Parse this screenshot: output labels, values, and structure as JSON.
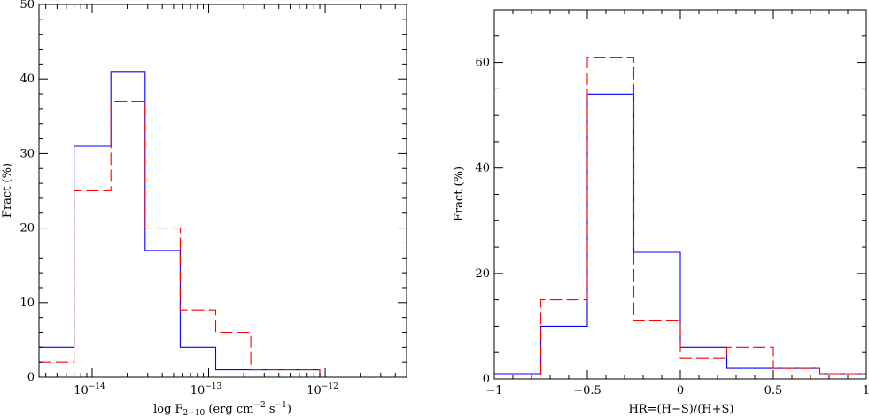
{
  "colors": {
    "blue_series": "#0000ff",
    "red_series": "#ff0000",
    "axes": "#000000"
  },
  "chart_data": [
    {
      "type": "step",
      "xlabel": "log F",
      "xlabel_subscript": "2−10",
      "xlabel_units_parts": [
        "(erg cm",
        "−2",
        " s",
        "−1",
        ")"
      ],
      "ylabel": "Fract (%)",
      "xscale": "log",
      "xlim": [
        3.5e-15,
        5e-12
      ],
      "ylim": [
        0,
        50
      ],
      "yticks": [
        "0",
        "10",
        "20",
        "30",
        "40",
        "50"
      ],
      "xtick_labels": [
        {
          "value": 1e-14,
          "base": "10",
          "exp": "−14"
        },
        {
          "value": 1e-13,
          "base": "10",
          "exp": "−13"
        },
        {
          "value": 1e-12,
          "base": "10",
          "exp": "−12"
        }
      ],
      "bin_edges": [
        3.5e-15,
        7e-15,
        1.45e-14,
        2.85e-14,
        5.7e-14,
        1.15e-13,
        2.3e-13,
        9e-13,
        5e-12
      ],
      "series": [
        {
          "color": "blue",
          "style": "solid",
          "values": [
            4,
            31,
            41,
            17,
            4,
            1,
            1,
            0
          ]
        },
        {
          "color": "red",
          "style": "dashed",
          "values": [
            2,
            25,
            37,
            20,
            9,
            6,
            1,
            0
          ]
        }
      ]
    },
    {
      "type": "step",
      "xlabel": "HR=(H−S)/(H+S)",
      "ylabel": "Fract (%)",
      "xlim": [
        -1,
        1
      ],
      "ylim": [
        0,
        70
      ],
      "yticks": [
        "0",
        "20",
        "40",
        "60"
      ],
      "xticks": [
        "−1",
        "−0.5",
        "0",
        "0.5",
        "1"
      ],
      "bin_edges": [
        -1,
        -0.75,
        -0.5,
        -0.25,
        0,
        0.25,
        0.5,
        0.75,
        1
      ],
      "series": [
        {
          "color": "blue",
          "style": "solid",
          "values": [
            1,
            10,
            54,
            24,
            6,
            2,
            2,
            1
          ]
        },
        {
          "color": "red",
          "style": "dashed",
          "values": [
            0,
            15,
            61,
            11,
            4,
            6,
            2,
            1
          ]
        }
      ]
    }
  ]
}
